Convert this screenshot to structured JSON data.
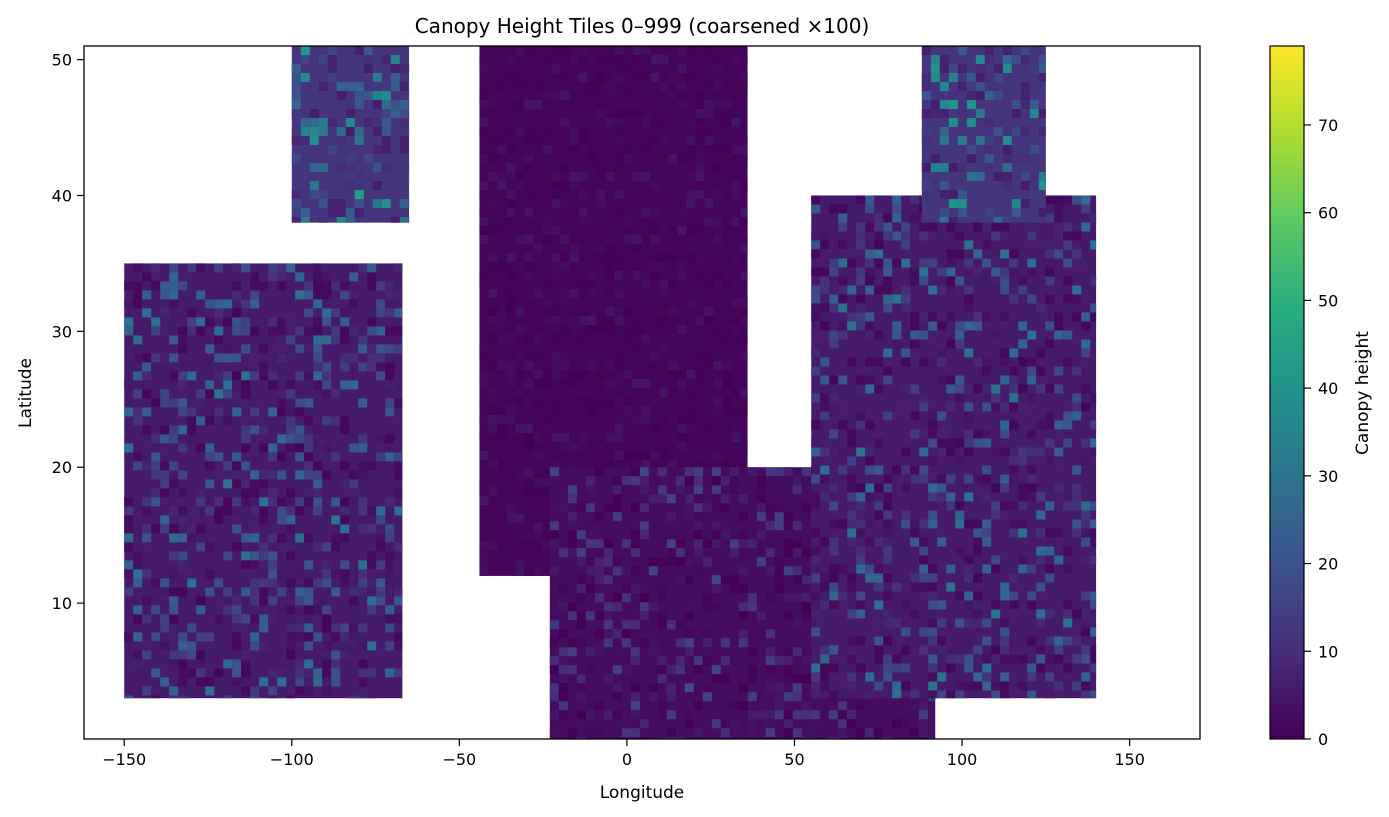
{
  "chart_data": {
    "type": "heatmap",
    "title": "Canopy Height Tiles 0–999 (coarsened ×100)",
    "xlabel": "Longitude",
    "ylabel": "Latitude",
    "xlim": [
      -162,
      171
    ],
    "ylim": [
      0,
      51
    ],
    "x_ticks": [
      -150,
      -100,
      -50,
      0,
      50,
      100,
      150
    ],
    "x_tick_labels": [
      "−150",
      "−100",
      "−50",
      "0",
      "50",
      "100",
      "150"
    ],
    "y_ticks": [
      10,
      20,
      30,
      40,
      50
    ],
    "y_tick_labels": [
      "10",
      "20",
      "30",
      "40",
      "50"
    ],
    "grid": false,
    "colormap": "viridis",
    "colorbar": {
      "label": "Canopy height",
      "range": [
        0,
        79
      ],
      "ticks": [
        0,
        10,
        20,
        30,
        40,
        50,
        60,
        70
      ],
      "tick_labels": [
        "0",
        "10",
        "20",
        "30",
        "40",
        "50",
        "60",
        "70"
      ],
      "colors": [
        "#440154",
        "#472d7b",
        "#3b528b",
        "#2c728e",
        "#21918c",
        "#28ae80",
        "#5ec962",
        "#addc30",
        "#fde725"
      ]
    },
    "regions": [
      {
        "lon": [
          -150,
          -67
        ],
        "lat": [
          3,
          35
        ],
        "level": "low-to-mid"
      },
      {
        "lon": [
          -100,
          -65
        ],
        "lat": [
          38,
          51
        ],
        "level": "mid"
      },
      {
        "lon": [
          -44,
          36
        ],
        "lat": [
          12,
          51
        ],
        "level": "very-low"
      },
      {
        "lon": [
          -23,
          92
        ],
        "lat": [
          0,
          20
        ],
        "level": "low"
      },
      {
        "lon": [
          55,
          140
        ],
        "lat": [
          3,
          40
        ],
        "level": "low-to-mid"
      },
      {
        "lon": [
          88,
          125
        ],
        "lat": [
          38,
          51
        ],
        "level": "mid"
      }
    ]
  }
}
